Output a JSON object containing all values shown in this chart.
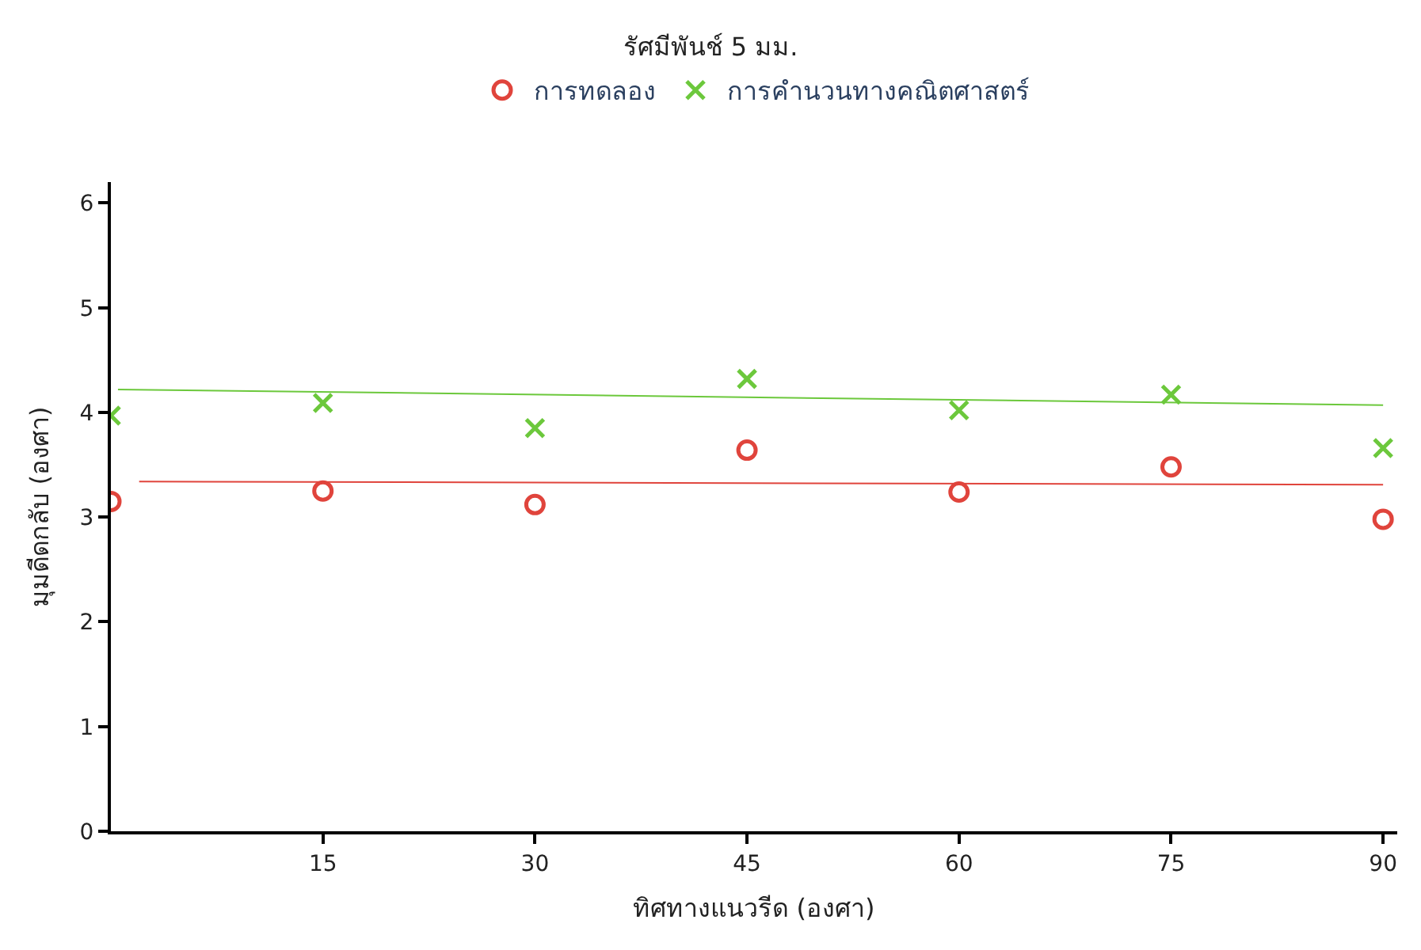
{
  "chart_data": {
    "type": "scatter",
    "title": "รัศมีพันช์ 5 มม.",
    "xlabel": "ทิศทางแนวรีด (องศา)",
    "ylabel": "มุมดีดกลับ (องศา)",
    "x": [
      0,
      15,
      30,
      45,
      60,
      75,
      90
    ],
    "series": [
      {
        "name": "การทดลอง",
        "color": "#e0443c",
        "marker": "circle",
        "values": [
          3.15,
          3.25,
          3.12,
          3.64,
          3.24,
          3.48,
          2.98
        ]
      },
      {
        "name": "การคำนวนทางคณิตศาสตร์",
        "color": "#6cc83c",
        "marker": "cross",
        "values": [
          3.97,
          4.09,
          3.85,
          4.32,
          4.02,
          4.17,
          3.66
        ]
      },
      {
        "type": "line",
        "color": "#e0443c",
        "marker": "none",
        "x": [
          2,
          90
        ],
        "values": [
          3.34,
          3.31
        ]
      },
      {
        "type": "line",
        "color": "#6cc83c",
        "marker": "none",
        "x": [
          0.5,
          90
        ],
        "values": [
          4.22,
          4.07
        ]
      }
    ],
    "xlim": [
      0,
      91
    ],
    "xticks": [
      15,
      30,
      45,
      60,
      75,
      90
    ],
    "ylim": [
      0,
      6.2
    ],
    "yticks": [
      0,
      1,
      2,
      3,
      4,
      5,
      6
    ],
    "legend": "top"
  }
}
